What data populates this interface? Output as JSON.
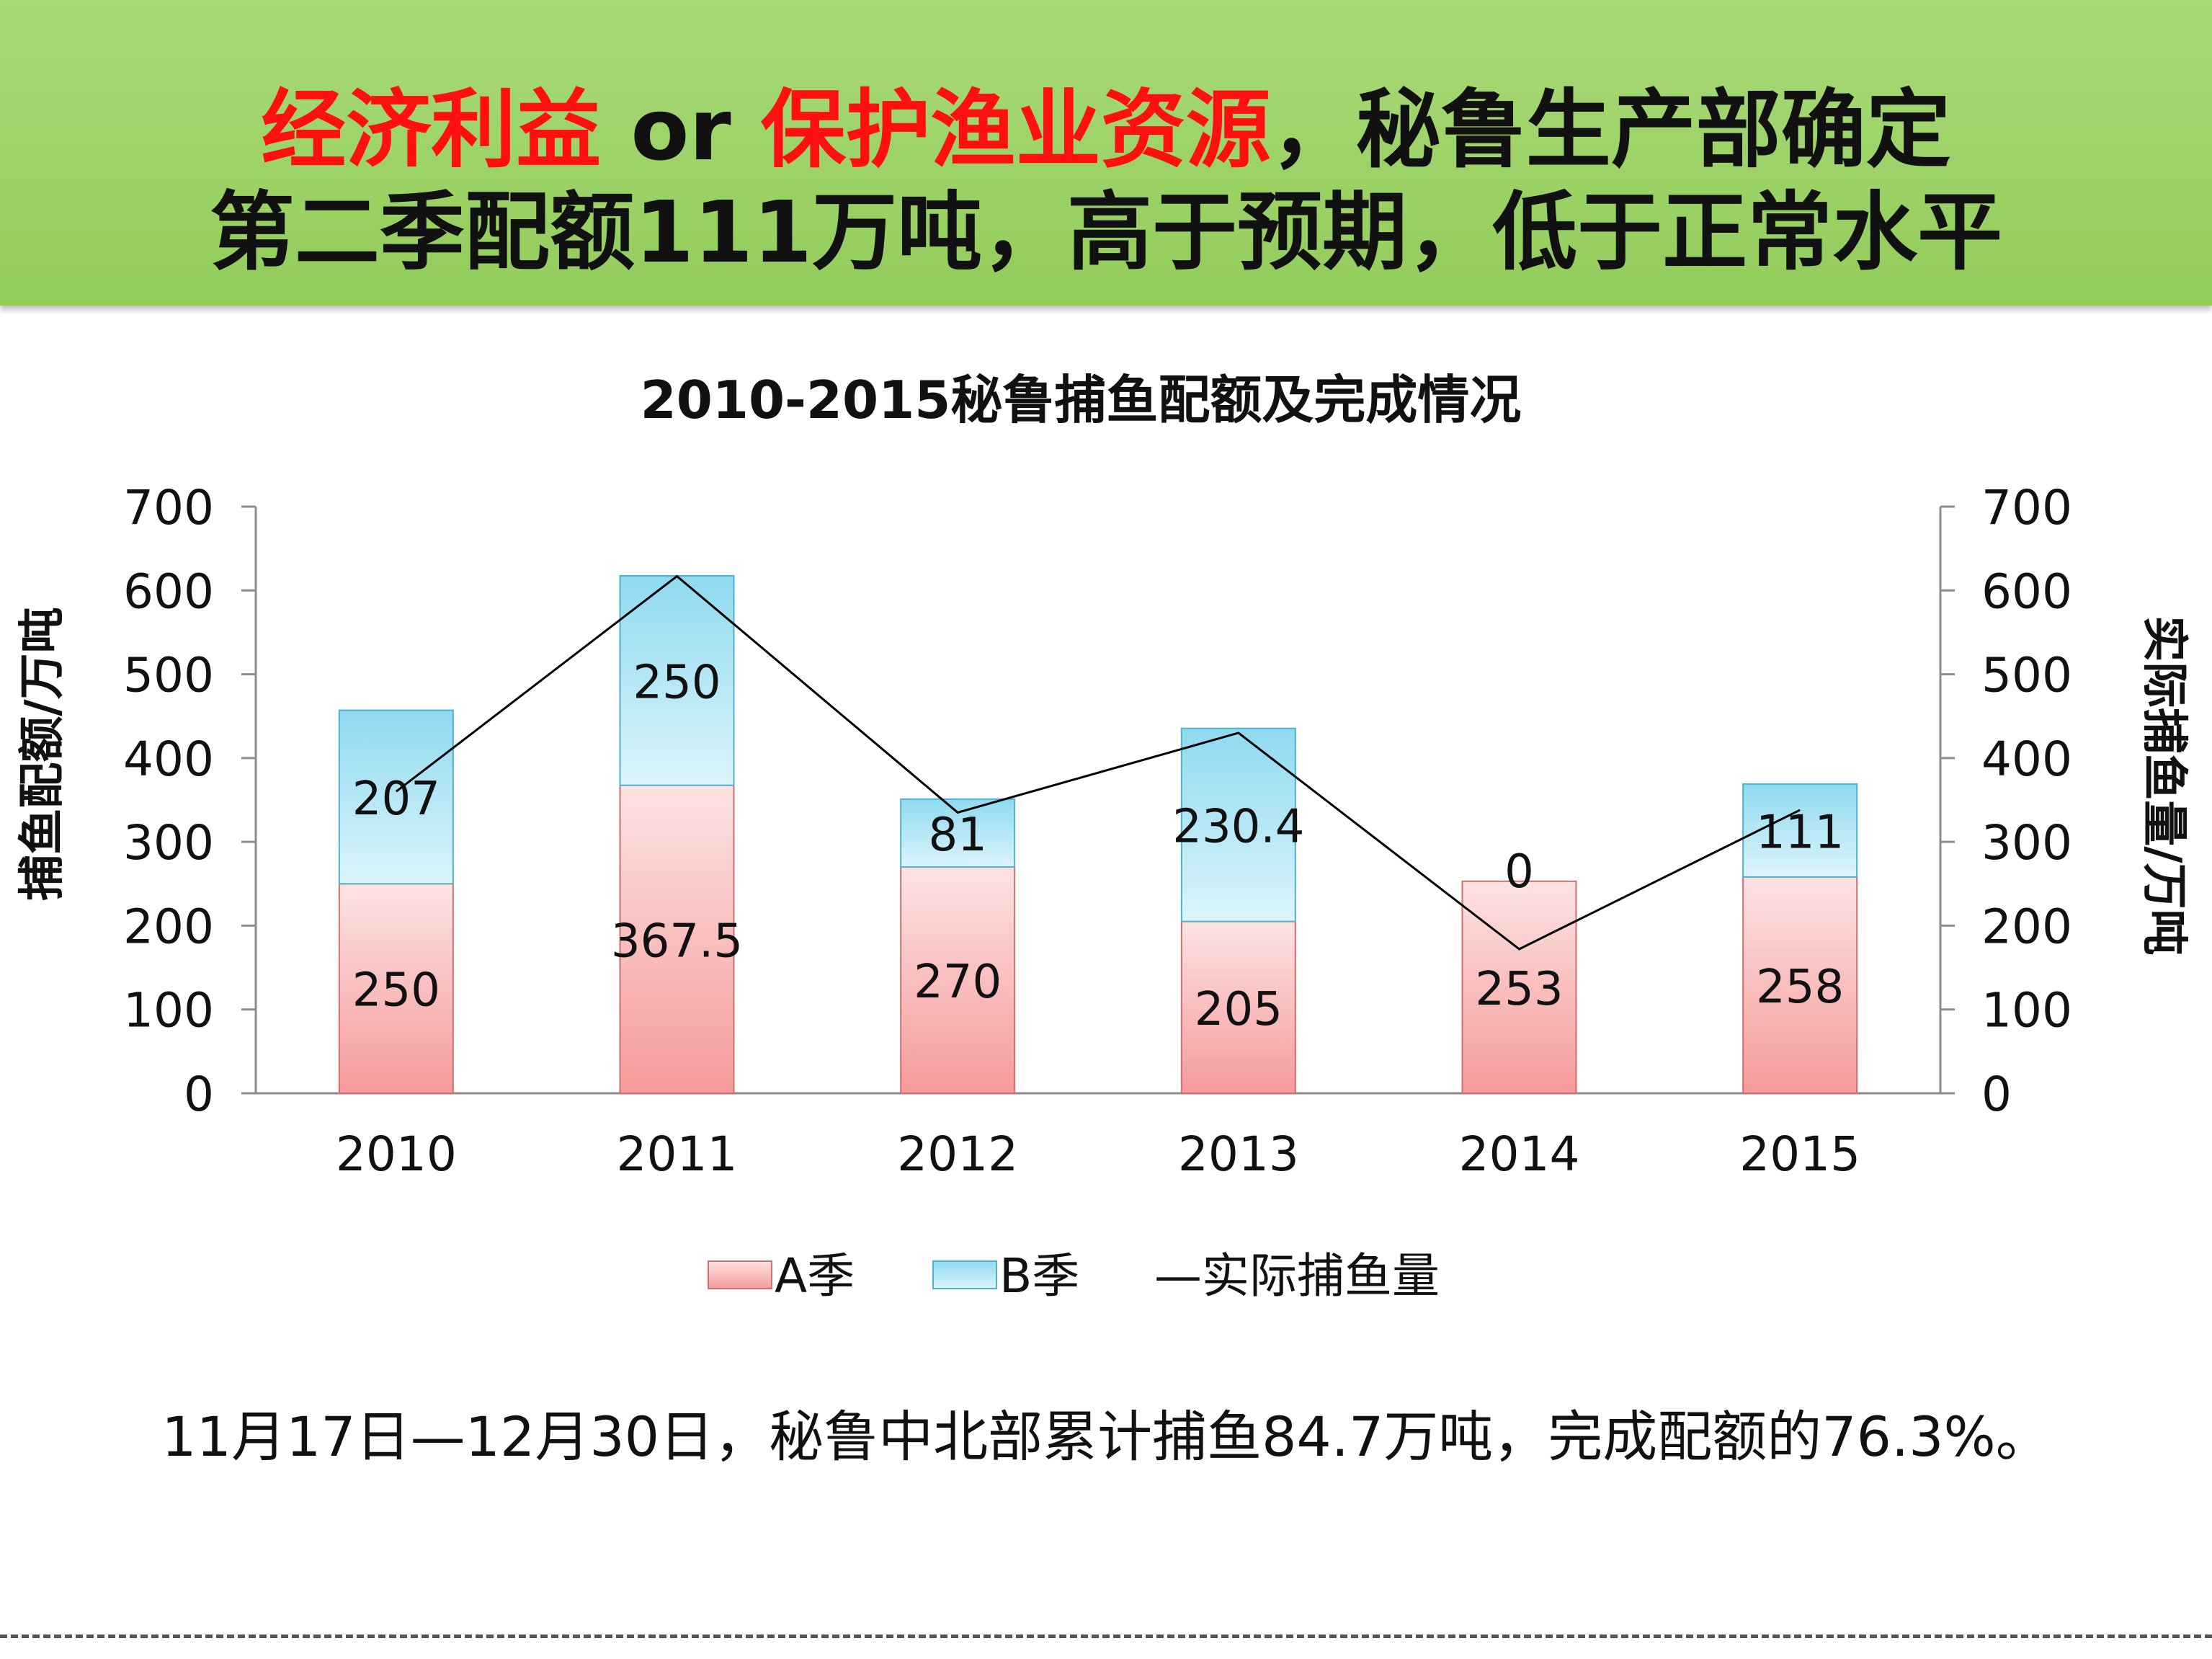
{
  "header": {
    "line1_a": "经济利益",
    "line1_b": " or ",
    "line1_c": "保护渔业资源",
    "line1_d": "，秘鲁生产部确定",
    "line2": "第二季配额111万吨，高于预期，低于正常水平",
    "background_color": "#9bd264",
    "highlight_color": "#ff1010"
  },
  "chart_data": {
    "type": "bar",
    "stacked": true,
    "title": "2010-2015秘鲁捕鱼配额及完成情况",
    "ylabel_left": "捕鱼配额/万吨",
    "ylabel_right": "实际捕鱼量/万吨",
    "ylim_left": [
      0,
      700
    ],
    "ylim_right": [
      0,
      700
    ],
    "yticks": [
      "0",
      "100",
      "200",
      "300",
      "400",
      "500",
      "600",
      "700"
    ],
    "categories": [
      "2010",
      "2011",
      "2012",
      "2013",
      "2014",
      "2015"
    ],
    "series": [
      {
        "name": "A季",
        "type": "bar",
        "values": [
          250,
          367.5,
          270,
          205,
          253,
          258
        ],
        "labels": [
          "250",
          "367.5",
          "270",
          "205",
          "253",
          "258"
        ],
        "color": "#f7a7a7"
      },
      {
        "name": "B季",
        "type": "bar",
        "values": [
          207,
          250,
          81,
          230.4,
          0,
          111
        ],
        "labels": [
          "207",
          "250",
          "81",
          "230.4",
          "0",
          "111"
        ],
        "color": "#a9e3f2"
      },
      {
        "name": "实际捕鱼量",
        "type": "line",
        "axis": "right",
        "values": [
          360,
          617,
          335,
          430,
          172,
          338
        ],
        "color": "#000000"
      }
    ],
    "legend": [
      "A季",
      "B季",
      "—实际捕鱼量"
    ],
    "legend_position": "bottom",
    "grid": false
  },
  "footnote": "11月17日—12月30日，秘鲁中北部累计捕鱼84.7万吨，完成配额的76.3%。"
}
